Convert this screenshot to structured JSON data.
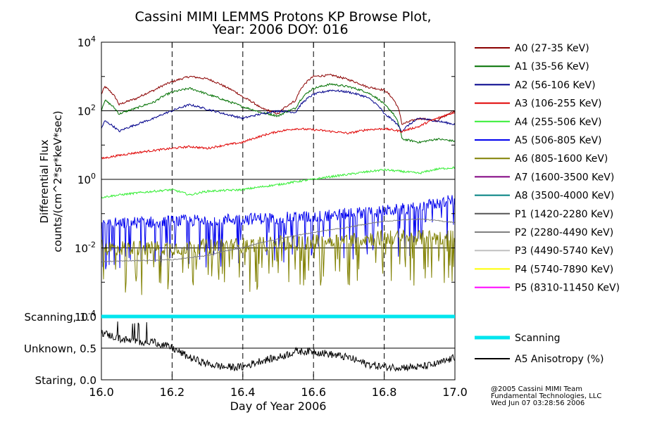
{
  "chart_data": {
    "type": "line",
    "title": "Cassini MIMI LEMMS Protons KP Browse Plot,",
    "subtitle": "Year: 2006 DOY: 016",
    "xlabel": "Day of Year 2006",
    "ylabel_line1": "Differential Flux",
    "ylabel_line2": "counts/(cm^2*sr*keV*sec)",
    "xlim": [
      16.0,
      17.0
    ],
    "x_ticks": [
      "16.0",
      "16.2",
      "16.4",
      "16.6",
      "16.8",
      "17.0"
    ],
    "x_tick_values": [
      16.0,
      16.2,
      16.4,
      16.6,
      16.8,
      17.0
    ],
    "y_scale": "log",
    "ylim": [
      0.0001,
      10000
    ],
    "y_ticks": [
      {
        "value": 10000,
        "base": "10",
        "exp": "4"
      },
      {
        "value": 100,
        "base": "10",
        "exp": "2"
      },
      {
        "value": 1,
        "base": "10",
        "exp": "0"
      },
      {
        "value": 0.01,
        "base": "10",
        "exp": "-2"
      },
      {
        "value": 0.0001,
        "base": "10",
        "exp": "-4"
      }
    ],
    "x_dashed_gridlines": [
      16.2,
      16.4,
      16.6,
      16.8
    ],
    "series": [
      {
        "name": "A0 (27-35 KeV)",
        "color": "#8b0000",
        "x": [
          16.0,
          16.01,
          16.05,
          16.1,
          16.15,
          16.2,
          16.25,
          16.3,
          16.35,
          16.4,
          16.45,
          16.5,
          16.55,
          16.6,
          16.65,
          16.7,
          16.75,
          16.8,
          16.85,
          16.9,
          16.95,
          17.0
        ],
        "values": [
          300,
          500,
          150,
          230,
          400,
          700,
          1000,
          850,
          500,
          250,
          120,
          80,
          200,
          1000,
          1100,
          800,
          500,
          400,
          40,
          60,
          50,
          100
        ]
      },
      {
        "name": "A1 (35-56 KeV)",
        "color": "#007000",
        "x": [
          16.0,
          16.01,
          16.05,
          16.1,
          16.15,
          16.2,
          16.25,
          16.3,
          16.35,
          16.4,
          16.45,
          16.5,
          16.55,
          16.6,
          16.65,
          16.7,
          16.75,
          16.8,
          16.85,
          16.9,
          16.95,
          17.0
        ],
        "values": [
          100,
          200,
          80,
          120,
          180,
          350,
          450,
          300,
          200,
          130,
          90,
          70,
          120,
          450,
          600,
          500,
          350,
          150,
          15,
          12,
          15,
          13
        ]
      },
      {
        "name": "A2 (56-106 KeV)",
        "color": "#00008b",
        "x": [
          16.0,
          16.01,
          16.05,
          16.1,
          16.15,
          16.2,
          16.25,
          16.3,
          16.35,
          16.4,
          16.45,
          16.5,
          16.55,
          16.6,
          16.65,
          16.7,
          16.75,
          16.8,
          16.85,
          16.9,
          16.95,
          17.0
        ],
        "values": [
          30,
          50,
          25,
          40,
          60,
          100,
          150,
          110,
          80,
          60,
          80,
          100,
          90,
          300,
          400,
          350,
          250,
          80,
          25,
          60,
          50,
          40
        ]
      },
      {
        "name": "A3 (106-255 KeV)",
        "color": "#e00000",
        "x": [
          16.0,
          16.05,
          16.1,
          16.15,
          16.2,
          16.25,
          16.3,
          16.35,
          16.4,
          16.45,
          16.5,
          16.55,
          16.6,
          16.65,
          16.7,
          16.75,
          16.8,
          16.85,
          16.9,
          16.95,
          17.0
        ],
        "values": [
          4,
          5,
          6,
          7,
          8,
          9,
          8,
          10,
          12,
          18,
          25,
          30,
          28,
          25,
          22,
          28,
          30,
          25,
          35,
          60,
          90
        ]
      },
      {
        "name": "A4 (255-506 KeV)",
        "color": "#33ee33",
        "x": [
          16.0,
          16.1,
          16.2,
          16.25,
          16.3,
          16.4,
          16.5,
          16.6,
          16.7,
          16.8,
          16.9,
          16.95,
          17.0
        ],
        "values": [
          0.3,
          0.4,
          0.5,
          0.35,
          0.45,
          0.5,
          0.7,
          1.0,
          1.4,
          1.9,
          1.5,
          2.0,
          2.2
        ]
      },
      {
        "name": "A5 (506-805 KeV)",
        "color": "#0000ee",
        "x": [
          16.0,
          16.2,
          16.4,
          16.6,
          16.8,
          16.9,
          17.0
        ],
        "values": [
          0.05,
          0.06,
          0.07,
          0.08,
          0.12,
          0.15,
          0.25
        ]
      },
      {
        "name": "A6 (805-1600 KeV)",
        "color": "#808000",
        "x": [
          16.0,
          16.2,
          16.4,
          16.6,
          16.8,
          17.0
        ],
        "values": [
          0.01,
          0.01,
          0.012,
          0.015,
          0.02,
          0.02
        ]
      },
      {
        "name": "A7 (1600-3500 KeV)",
        "color": "#800080",
        "x": [],
        "values": []
      },
      {
        "name": "A8 (3500-4000 KeV)",
        "color": "#008080",
        "x": [],
        "values": []
      },
      {
        "name": "P1 (1420-2280 KeV)",
        "color": "#555555",
        "x": [],
        "values": []
      },
      {
        "name": "P2 (2280-4490 KeV)",
        "color": "#808080",
        "x": [
          16.0,
          16.2,
          16.3,
          16.4,
          16.5,
          16.6,
          16.7,
          16.8,
          16.9,
          17.0
        ],
        "values": [
          0.004,
          0.0045,
          0.006,
          0.01,
          0.018,
          0.028,
          0.04,
          0.06,
          0.07,
          0.055
        ]
      },
      {
        "name": "P3 (4490-5740 KeV)",
        "color": "#c0c0c0",
        "x": [],
        "values": []
      },
      {
        "name": "P4 (5740-7890 KeV)",
        "color": "#ffff00",
        "x": [],
        "values": []
      },
      {
        "name": "P5 (8310-11450 KeV)",
        "color": "#ff00ff",
        "x": [],
        "values": []
      }
    ],
    "lower_panel": {
      "ytick_labels": [
        "Scanning, 1.0",
        "Unknown, 0.5",
        "Staring, 0.0"
      ],
      "ytick_values": [
        1.0,
        0.5,
        0.0
      ],
      "ylim": [
        0.0,
        1.0
      ],
      "series": [
        {
          "name": "Scanning",
          "color": "#00e5ee",
          "x": [
            16.0,
            17.0
          ],
          "values": [
            1.0,
            1.0
          ]
        },
        {
          "name": "A5 Anisotropy (%)",
          "color": "#000000",
          "x": [
            16.0,
            16.05,
            16.1,
            16.15,
            16.2,
            16.25,
            16.3,
            16.35,
            16.4,
            16.45,
            16.5,
            16.55,
            16.6,
            16.65,
            16.7,
            16.75,
            16.8,
            16.85,
            16.9,
            16.95,
            17.0
          ],
          "values": [
            0.75,
            0.65,
            0.6,
            0.6,
            0.5,
            0.35,
            0.25,
            0.2,
            0.2,
            0.3,
            0.35,
            0.45,
            0.45,
            0.4,
            0.35,
            0.25,
            0.2,
            0.2,
            0.2,
            0.25,
            0.35
          ]
        }
      ]
    },
    "footer": {
      "line1": "@2005 Cassini MIMI Team",
      "line2": "Fundamental Technologies, LLC",
      "line3": "Wed Jun 07 03:28:56 2006"
    }
  }
}
